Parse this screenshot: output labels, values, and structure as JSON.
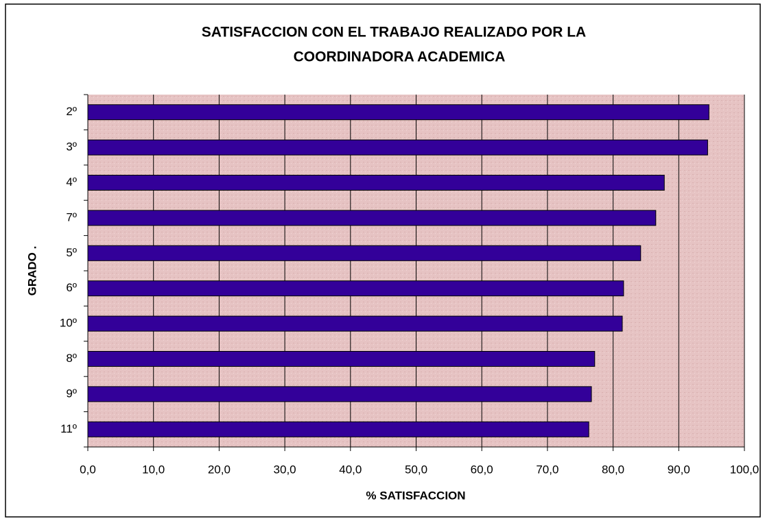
{
  "chart_data": {
    "type": "bar",
    "orientation": "horizontal",
    "title": [
      "SATISFACCION CON EL TRABAJO REALIZADO POR LA",
      "COORDINADORA ACADEMICA"
    ],
    "xlabel": "% SATISFACCION",
    "ylabel": "GRADO .",
    "categories": [
      "2º",
      "3º",
      "4º",
      "7º",
      "5º",
      "6º",
      "10º",
      "8º",
      "9º",
      "11º"
    ],
    "values": [
      94.6,
      94.4,
      87.8,
      86.5,
      84.2,
      81.6,
      81.4,
      77.2,
      76.7,
      76.3
    ],
    "color": "#330099",
    "xlim": [
      0,
      100
    ],
    "xticks": [
      {
        "value": 0,
        "label": "0,0"
      },
      {
        "value": 10,
        "label": "10,0"
      },
      {
        "value": 20,
        "label": "20,0"
      },
      {
        "value": 30,
        "label": "30,0"
      },
      {
        "value": 40,
        "label": "40,0"
      },
      {
        "value": 50,
        "label": "50,0"
      },
      {
        "value": 60,
        "label": "60,0"
      },
      {
        "value": 70,
        "label": "70,0"
      },
      {
        "value": 80,
        "label": "80,0"
      },
      {
        "value": 90,
        "label": "90,0"
      },
      {
        "value": 100,
        "label": "100,0"
      }
    ],
    "grid": true
  }
}
